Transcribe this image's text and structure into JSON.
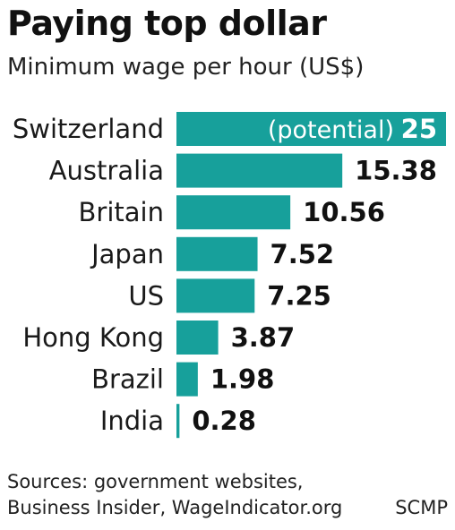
{
  "title": "Paying top dollar",
  "subtitle": "Minimum wage per hour (US$)",
  "colors": {
    "bar": "#17a09b",
    "text": "#111111"
  },
  "chart_data": {
    "type": "bar",
    "orientation": "horizontal",
    "categories": [
      "Switzerland",
      "Australia",
      "Britain",
      "Japan",
      "US",
      "Hong Kong",
      "Brazil",
      "India"
    ],
    "values": [
      25,
      15.38,
      10.56,
      7.52,
      7.25,
      3.87,
      1.98,
      0.28
    ],
    "value_labels": [
      "25",
      "15.38",
      "10.56",
      "7.52",
      "7.25",
      "3.87",
      "1.98",
      "0.28"
    ],
    "annotations": [
      {
        "category": "Switzerland",
        "text": "(potential)"
      }
    ],
    "xlim": [
      0,
      25
    ],
    "grid": false,
    "legend": "none"
  },
  "sources": {
    "line1": "Sources: government websites,",
    "line2": "Business Insider, WageIndicator.org"
  },
  "credit": "SCMP"
}
